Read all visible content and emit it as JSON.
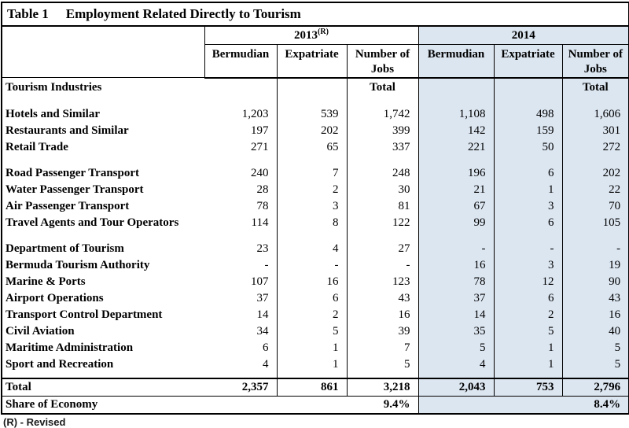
{
  "title": {
    "table_label": "Table 1",
    "table_title": "Employment Related Directly to Tourism"
  },
  "header": {
    "year_2013": "2013",
    "year_2013_superscript": "(R)",
    "year_2014": "2014",
    "subcolumns": [
      "Bermudian",
      "Expatriate",
      "Number of Jobs"
    ]
  },
  "rows": [
    {
      "type": "group",
      "label": "Tourism Industries",
      "values": [
        "",
        "",
        "Total",
        "",
        "",
        "Total"
      ]
    },
    {
      "type": "blank"
    },
    {
      "type": "data",
      "label": "Hotels and Similar",
      "values": [
        "1,203",
        "539",
        "1,742",
        "1,108",
        "498",
        "1,606"
      ]
    },
    {
      "type": "data",
      "label": "Restaurants and Similar",
      "values": [
        "197",
        "202",
        "399",
        "142",
        "159",
        "301"
      ]
    },
    {
      "type": "data",
      "label": "Retail Trade",
      "values": [
        "271",
        "65",
        "337",
        "221",
        "50",
        "272"
      ]
    },
    {
      "type": "blank"
    },
    {
      "type": "data",
      "label": "Road Passenger Transport",
      "values": [
        "240",
        "7",
        "248",
        "196",
        "6",
        "202"
      ]
    },
    {
      "type": "data",
      "label": "Water Passenger Transport",
      "values": [
        "28",
        "2",
        "30",
        "21",
        "1",
        "22"
      ]
    },
    {
      "type": "data",
      "label": "Air Passenger Transport",
      "values": [
        "78",
        "3",
        "81",
        "67",
        "3",
        "70"
      ]
    },
    {
      "type": "data",
      "label": "Travel Agents and Tour Operators",
      "values": [
        "114",
        "8",
        "122",
        "99",
        "6",
        "105"
      ]
    },
    {
      "type": "blank"
    },
    {
      "type": "data",
      "label": "Department of Tourism",
      "values": [
        "23",
        "4",
        "27",
        "-",
        "-",
        "-"
      ]
    },
    {
      "type": "data",
      "label": "Bermuda Tourism Authority",
      "values": [
        "-",
        "-",
        "-",
        "16",
        "3",
        "19"
      ]
    },
    {
      "type": "data",
      "label": "Marine & Ports",
      "values": [
        "107",
        "16",
        "123",
        "78",
        "12",
        "90"
      ]
    },
    {
      "type": "data",
      "label": "Airport Operations",
      "values": [
        "37",
        "6",
        "43",
        "37",
        "6",
        "43"
      ]
    },
    {
      "type": "data",
      "label": "Transport Control Department",
      "values": [
        "14",
        "2",
        "16",
        "14",
        "2",
        "16"
      ]
    },
    {
      "type": "data",
      "label": "Civil Aviation",
      "values": [
        "34",
        "5",
        "39",
        "35",
        "5",
        "40"
      ]
    },
    {
      "type": "data",
      "label": "Maritime Administration",
      "values": [
        "6",
        "1",
        "7",
        "5",
        "1",
        "5"
      ]
    },
    {
      "type": "data",
      "label": "Sport and Recreation",
      "values": [
        "4",
        "1",
        "5",
        "4",
        "1",
        "5"
      ]
    },
    {
      "type": "spacer"
    }
  ],
  "total_row": {
    "label": "Total",
    "values": [
      "2,357",
      "861",
      "3,218",
      "2,043",
      "753",
      "2,796"
    ]
  },
  "share_row": {
    "label": "Share of Economy",
    "value_2013": "9.4%",
    "value_2014": "8.4%"
  },
  "footnote": "(R) - Revised",
  "colors": {
    "highlight_2014": "#dce6f1",
    "border": "#000000"
  }
}
